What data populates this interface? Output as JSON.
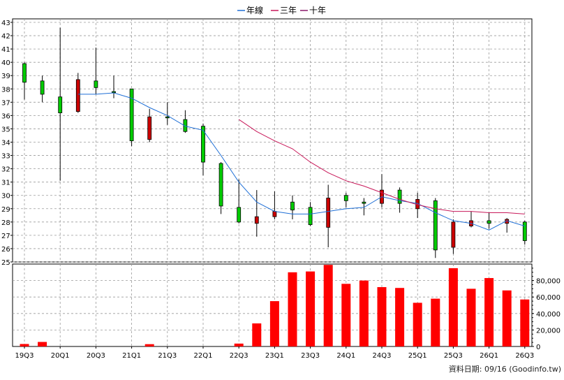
{
  "legend": [
    {
      "label": "年線",
      "color": "#1f6fd6"
    },
    {
      "label": "三年",
      "color": "#c8195a"
    },
    {
      "label": "十年",
      "color": "#8b1a6b"
    }
  ],
  "footer": {
    "source": "資料日期: 09/16  (Goodinfo.tw)"
  },
  "chart_data": [
    {
      "type": "candlestick",
      "title": "",
      "ylim": [
        25,
        43
      ],
      "y_ticks": [
        25,
        26,
        27,
        28,
        29,
        30,
        31,
        32,
        33,
        34,
        35,
        36,
        37,
        38,
        39,
        40,
        41,
        42,
        43
      ],
      "x_tick_labels": [
        "19Q3",
        "20Q1",
        "20Q3",
        "21Q1",
        "21Q3",
        "22Q1",
        "22Q3",
        "23Q1",
        "23Q3",
        "24Q1",
        "24Q3",
        "25Q1",
        "25Q3",
        "26Q1",
        "26Q3"
      ],
      "grid": true,
      "up_color": "#00cc00",
      "down_color": "#cc0000",
      "candles": [
        {
          "period": "19Q3",
          "open": 38.5,
          "high": 40.0,
          "low": 37.2,
          "close": 39.9
        },
        {
          "period": "19Q4",
          "open": 37.6,
          "high": 39.0,
          "low": 37.0,
          "close": 38.6
        },
        {
          "period": "20Q1",
          "open": 36.2,
          "high": 42.6,
          "low": 31.1,
          "close": 37.4
        },
        {
          "period": "20Q2",
          "open": 38.7,
          "high": 39.2,
          "low": 36.2,
          "close": 36.3
        },
        {
          "period": "20Q3",
          "open": 38.1,
          "high": 41.1,
          "low": 37.6,
          "close": 38.6
        },
        {
          "period": "20Q4",
          "open": 37.8,
          "high": 39.0,
          "low": 37.3,
          "close": 37.8
        },
        {
          "period": "21Q1",
          "open": 34.1,
          "high": 38.0,
          "low": 33.7,
          "close": 38.0
        },
        {
          "period": "21Q2",
          "open": 35.9,
          "high": 36.5,
          "low": 34.0,
          "close": 34.2
        },
        {
          "period": "21Q3",
          "open": 35.9,
          "high": 37.0,
          "low": 35.3,
          "close": 35.9
        },
        {
          "period": "21Q4",
          "open": 34.8,
          "high": 36.4,
          "low": 34.7,
          "close": 35.7
        },
        {
          "period": "22Q1",
          "open": 32.5,
          "high": 35.4,
          "low": 31.5,
          "close": 35.2
        },
        {
          "period": "22Q2",
          "open": 29.2,
          "high": 32.5,
          "low": 28.6,
          "close": 32.4
        },
        {
          "period": "22Q3",
          "open": 28.0,
          "high": 31.2,
          "low": 27.9,
          "close": 29.1
        },
        {
          "period": "22Q4",
          "open": 28.4,
          "high": 30.4,
          "low": 26.9,
          "close": 27.9
        },
        {
          "period": "23Q1",
          "open": 28.8,
          "high": 30.3,
          "low": 28.2,
          "close": 28.4
        },
        {
          "period": "23Q2",
          "open": 28.9,
          "high": 30.0,
          "low": 28.2,
          "close": 29.5
        },
        {
          "period": "23Q3",
          "open": 27.8,
          "high": 29.5,
          "low": 27.7,
          "close": 29.1
        },
        {
          "period": "23Q4",
          "open": 29.8,
          "high": 30.8,
          "low": 26.1,
          "close": 27.6
        },
        {
          "period": "24Q1",
          "open": 29.6,
          "high": 30.2,
          "low": 29.1,
          "close": 30.0
        },
        {
          "period": "24Q2",
          "open": 29.4,
          "high": 29.8,
          "low": 28.5,
          "close": 29.5
        },
        {
          "period": "24Q3",
          "open": 30.4,
          "high": 31.6,
          "low": 29.1,
          "close": 29.4
        },
        {
          "period": "24Q4",
          "open": 29.4,
          "high": 30.6,
          "low": 28.7,
          "close": 30.4
        },
        {
          "period": "25Q1",
          "open": 29.7,
          "high": 30.2,
          "low": 28.3,
          "close": 29.0
        },
        {
          "period": "25Q2",
          "open": 25.9,
          "high": 29.8,
          "low": 25.3,
          "close": 29.6
        },
        {
          "period": "25Q3",
          "open": 28.0,
          "high": 28.2,
          "low": 25.6,
          "close": 26.1
        },
        {
          "period": "25Q4",
          "open": 28.1,
          "high": 28.8,
          "low": 27.6,
          "close": 27.7
        },
        {
          "period": "26Q1",
          "open": 27.9,
          "high": 28.7,
          "low": 27.5,
          "close": 28.1
        },
        {
          "period": "26Q2",
          "open": 28.2,
          "high": 28.3,
          "low": 27.2,
          "close": 27.9
        },
        {
          "period": "26Q3",
          "open": 26.6,
          "high": 28.1,
          "low": 26.3,
          "close": 28.0
        }
      ],
      "series": [
        {
          "name": "年線",
          "color": "#1f6fd6",
          "values": [
            null,
            null,
            null,
            37.6,
            37.6,
            37.7,
            37.3,
            36.6,
            36.0,
            35.2,
            34.9,
            33.0,
            31.0,
            29.5,
            28.8,
            28.6,
            28.6,
            28.8,
            29.0,
            29.1,
            29.9,
            29.6,
            29.4,
            28.7,
            28.1,
            27.9,
            27.4,
            28.1,
            27.7
          ]
        },
        {
          "name": "三年",
          "color": "#c8195a",
          "values": [
            null,
            null,
            null,
            null,
            null,
            null,
            null,
            null,
            null,
            null,
            null,
            null,
            35.7,
            34.8,
            34.1,
            33.5,
            32.5,
            31.7,
            31.1,
            30.7,
            30.2,
            29.7,
            29.3,
            29.0,
            28.8,
            28.8,
            28.7,
            28.7,
            28.6
          ]
        },
        {
          "name": "十年",
          "color": "#8b1a6b",
          "values": []
        }
      ]
    },
    {
      "type": "bar",
      "title": "",
      "ylim": [
        0,
        100000
      ],
      "y_ticks": [
        0,
        20000,
        40000,
        60000,
        80000
      ],
      "y_tick_labels": [
        "0",
        "20,000",
        "40,000",
        "60,000",
        "80,000"
      ],
      "bar_color": "#ff0000",
      "values": [
        3000,
        5500,
        0,
        0,
        0,
        0,
        0,
        2800,
        0,
        0,
        0,
        0,
        3500,
        28000,
        55000,
        90000,
        91000,
        99000,
        76000,
        80000,
        72000,
        71000,
        53000,
        58000,
        95000,
        70000,
        83000,
        68000,
        57000
      ]
    }
  ]
}
